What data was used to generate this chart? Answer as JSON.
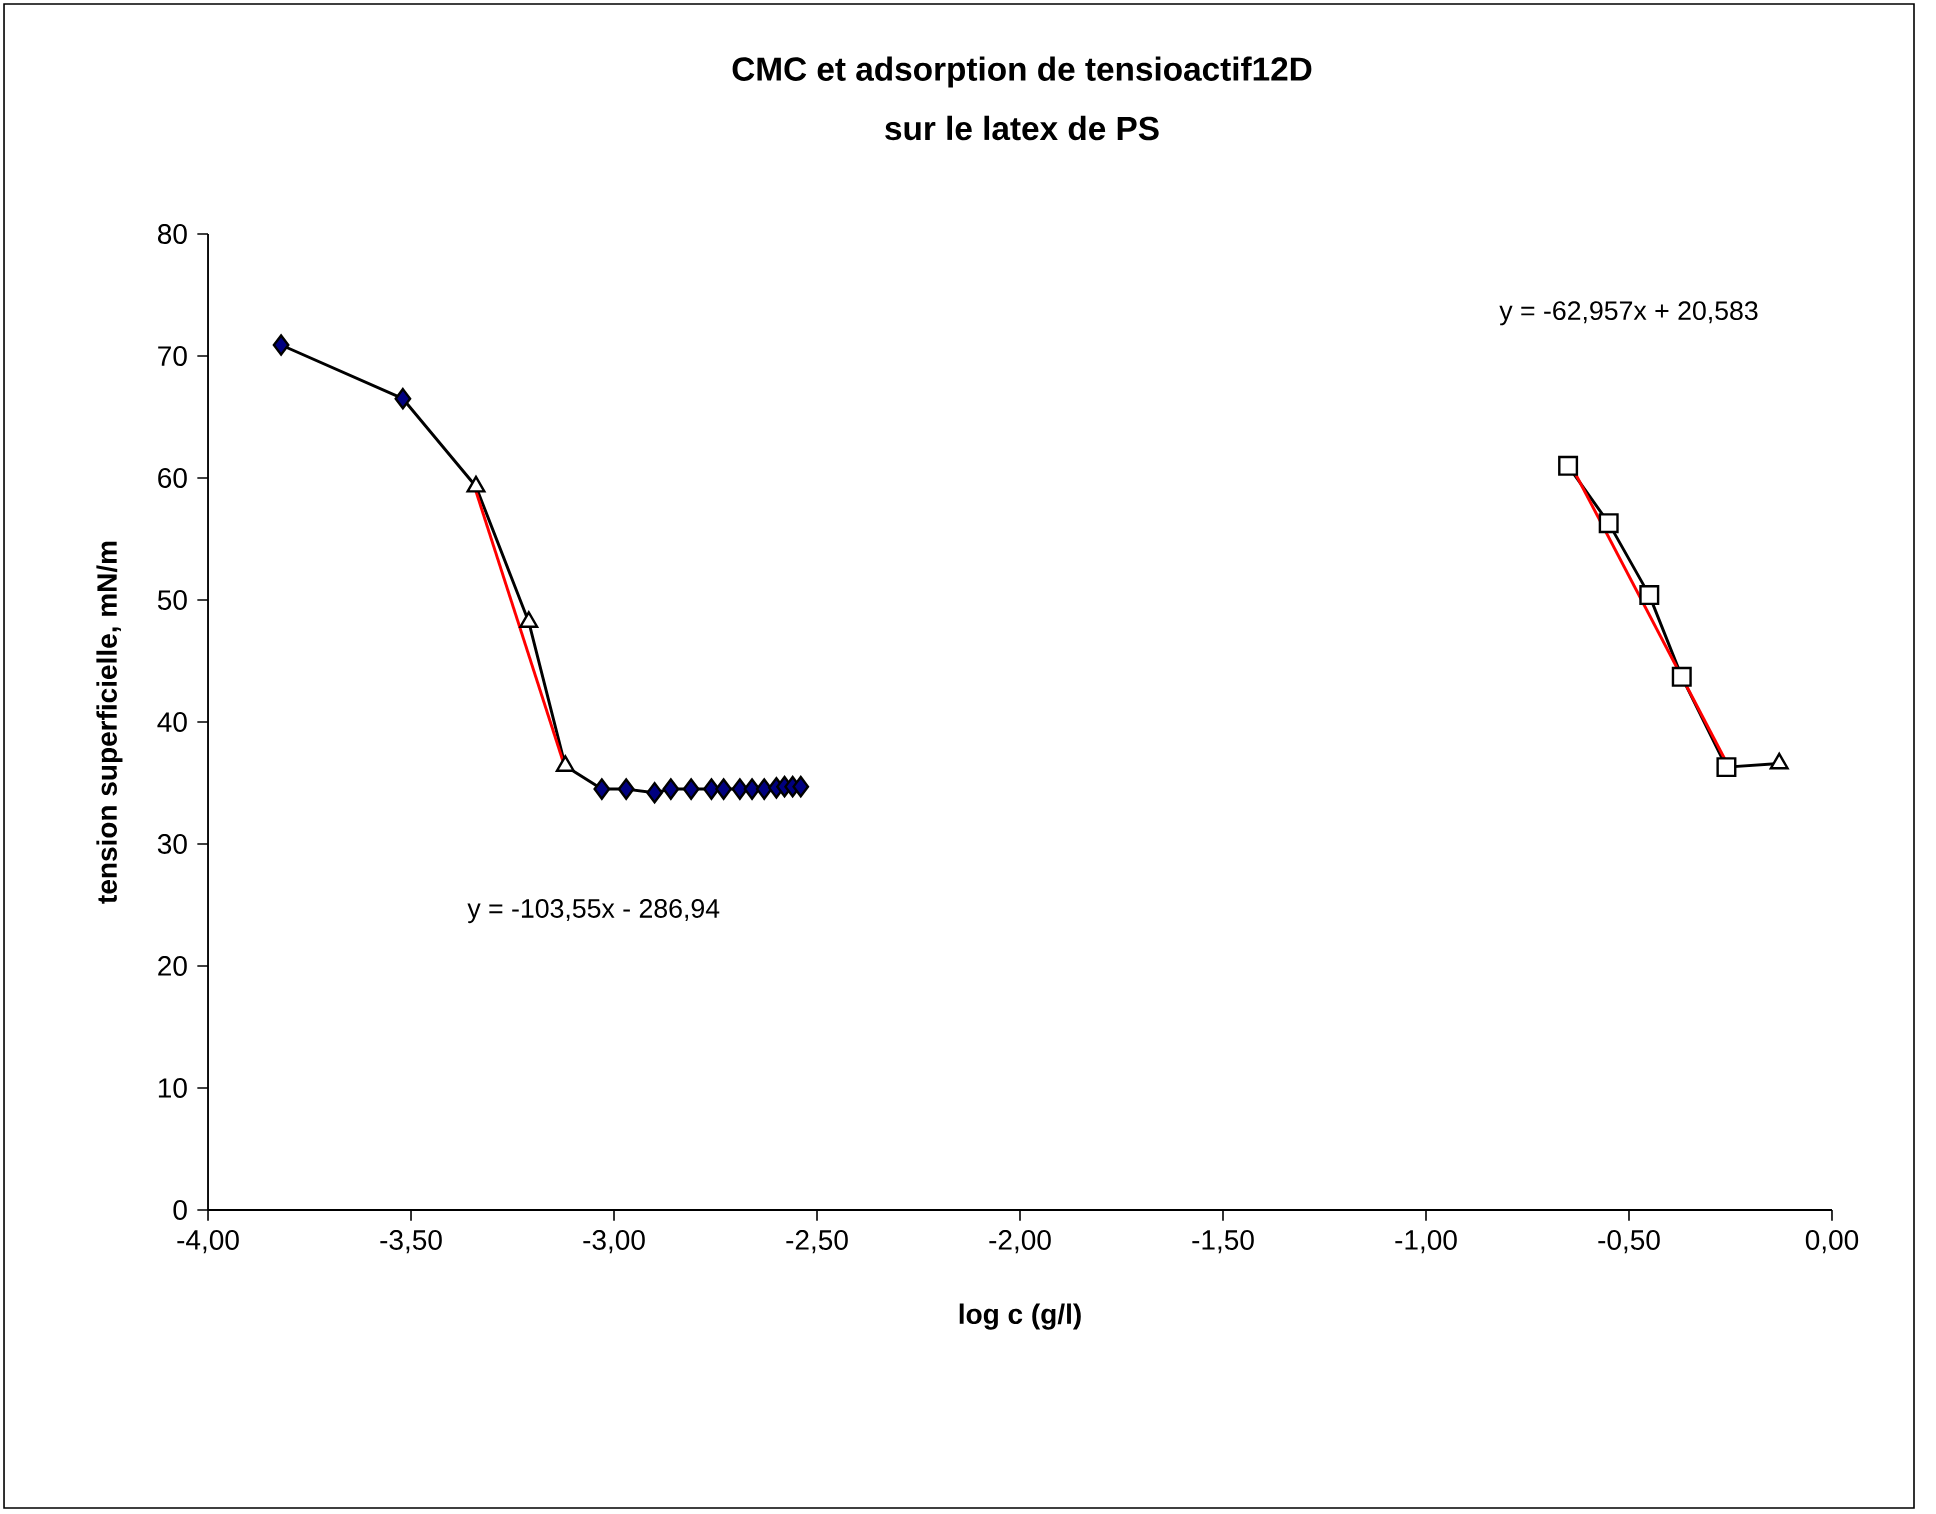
{
  "chart_data": {
    "type": "scatter",
    "title": "CMC et adsorption de tensioactif12D",
    "subtitle": "sur le latex de PS",
    "xlabel": "log c (g/l)",
    "ylabel": "tension superficielle, mN/m",
    "xlim": [
      -4,
      0
    ],
    "ylim": [
      0,
      80
    ],
    "xticks": [
      {
        "value": -4,
        "label": "-4,00"
      },
      {
        "value": -3.5,
        "label": "-3,50"
      },
      {
        "value": -3,
        "label": "-3,00"
      },
      {
        "value": -2.5,
        "label": "-2,50"
      },
      {
        "value": -2,
        "label": "-2,00"
      },
      {
        "value": -1.5,
        "label": "-1,50"
      },
      {
        "value": -1,
        "label": "-1,00"
      },
      {
        "value": -0.5,
        "label": "-0,50"
      },
      {
        "value": 0,
        "label": "0,00"
      }
    ],
    "yticks": [
      0,
      10,
      20,
      30,
      40,
      50,
      60,
      70,
      80
    ],
    "annotations": [
      "y = -62,957x + 20,583",
      "y = -103,55x - 286,94"
    ],
    "series": [
      {
        "type": "line",
        "color": "#000000",
        "marker": "none",
        "x": [
          -3.82,
          -3.52,
          -3.34,
          -3.21,
          -3.12,
          -3.03,
          -2.97,
          -2.9,
          -2.86,
          -2.81,
          -2.76,
          -2.73,
          -2.69,
          -2.66,
          -2.63,
          -2.6,
          -2.58,
          -2.56,
          -2.54
        ],
        "values": [
          70.9,
          66.5,
          59.3,
          48.2,
          36.4,
          34.5,
          34.5,
          34.2,
          34.5,
          34.5,
          34.5,
          34.5,
          34.5,
          34.5,
          34.5,
          34.6,
          34.7,
          34.7,
          34.7
        ]
      },
      {
        "type": "line",
        "color": "#000000",
        "marker": "none",
        "x": [
          -0.65,
          -0.55,
          -0.45,
          -0.37,
          -0.26,
          -0.13
        ],
        "values": [
          61.0,
          56.3,
          50.4,
          43.7,
          36.3,
          36.6
        ]
      },
      {
        "type": "line",
        "color": "#ff0000",
        "marker": "none",
        "x": [
          -3.34,
          -3.12
        ],
        "values": [
          58.9,
          36.2
        ]
      },
      {
        "type": "line",
        "color": "#ff0000",
        "marker": "none",
        "x": [
          -0.65,
          -0.26
        ],
        "values": [
          61.5,
          36.7
        ]
      },
      {
        "type": "scatter",
        "color": "#000080",
        "marker": "diamond",
        "x": [
          -3.82,
          -3.52,
          -3.03,
          -2.97,
          -2.9,
          -2.86,
          -2.81,
          -2.76,
          -2.73,
          -2.69,
          -2.66,
          -2.63,
          -2.6,
          -2.58,
          -2.56,
          -2.54
        ],
        "values": [
          70.9,
          66.5,
          34.5,
          34.5,
          34.2,
          34.5,
          34.5,
          34.5,
          34.5,
          34.5,
          34.5,
          34.5,
          34.6,
          34.7,
          34.7,
          34.7
        ]
      },
      {
        "type": "scatter",
        "color": "#000000",
        "marker": "triangle",
        "x": [
          -3.34,
          -3.21,
          -3.12,
          -0.13
        ],
        "values": [
          59.3,
          48.2,
          36.4,
          36.6
        ]
      },
      {
        "type": "scatter",
        "color": "#000000",
        "marker": "square",
        "x": [
          -0.65,
          -0.55,
          -0.45,
          -0.37,
          -0.26
        ],
        "values": [
          61.0,
          56.3,
          50.4,
          43.7,
          36.3
        ]
      }
    ]
  }
}
